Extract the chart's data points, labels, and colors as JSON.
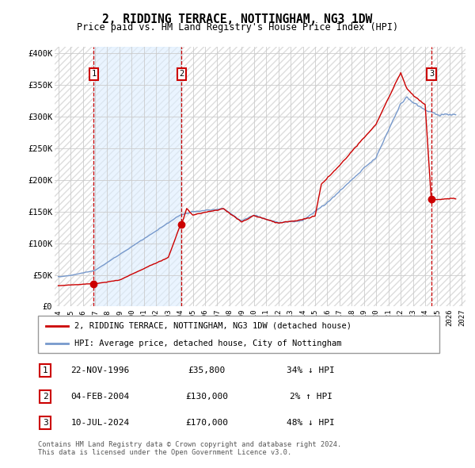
{
  "title": "2, RIDDING TERRACE, NOTTINGHAM, NG3 1DW",
  "subtitle": "Price paid vs. HM Land Registry's House Price Index (HPI)",
  "ylim": [
    0,
    410000
  ],
  "xlim_start": 1993.7,
  "xlim_end": 2027.3,
  "yticks": [
    0,
    50000,
    100000,
    150000,
    200000,
    250000,
    300000,
    350000,
    400000
  ],
  "ytick_labels": [
    "£0",
    "£50K",
    "£100K",
    "£150K",
    "£200K",
    "£250K",
    "£300K",
    "£350K",
    "£400K"
  ],
  "xticks": [
    1994,
    1995,
    1996,
    1997,
    1998,
    1999,
    2000,
    2001,
    2002,
    2003,
    2004,
    2005,
    2006,
    2007,
    2008,
    2009,
    2010,
    2011,
    2012,
    2013,
    2014,
    2015,
    2016,
    2017,
    2018,
    2019,
    2020,
    2021,
    2022,
    2023,
    2024,
    2025,
    2026,
    2027
  ],
  "background_color": "#ffffff",
  "plot_bg_color": "#ffffff",
  "grid_color": "#cccccc",
  "hpi_line_color": "#7799cc",
  "price_line_color": "#cc0000",
  "shade_color": "#ddeeff",
  "dashed_vline_color": "#cc0000",
  "sale_marker_color": "#cc0000",
  "annotation_box_color": "#cc0000",
  "hatch_color": "#dddddd",
  "transactions": [
    {
      "date": 1996.9,
      "price": 35800,
      "label": "1",
      "hpi_pct": "34% ↓ HPI",
      "date_str": "22-NOV-1996",
      "price_str": "£35,800"
    },
    {
      "date": 2004.09,
      "price": 130000,
      "label": "2",
      "hpi_pct": "2% ↑ HPI",
      "date_str": "04-FEB-2004",
      "price_str": "£130,000"
    },
    {
      "date": 2024.52,
      "price": 170000,
      "label": "3",
      "hpi_pct": "48% ↓ HPI",
      "date_str": "10-JUL-2024",
      "price_str": "£170,000"
    }
  ],
  "legend_label_red": "2, RIDDING TERRACE, NOTTINGHAM, NG3 1DW (detached house)",
  "legend_label_blue": "HPI: Average price, detached house, City of Nottingham",
  "footer_line1": "Contains HM Land Registry data © Crown copyright and database right 2024.",
  "footer_line2": "This data is licensed under the Open Government Licence v3.0.",
  "shade_start": 1996.9,
  "shade_end": 2004.09
}
